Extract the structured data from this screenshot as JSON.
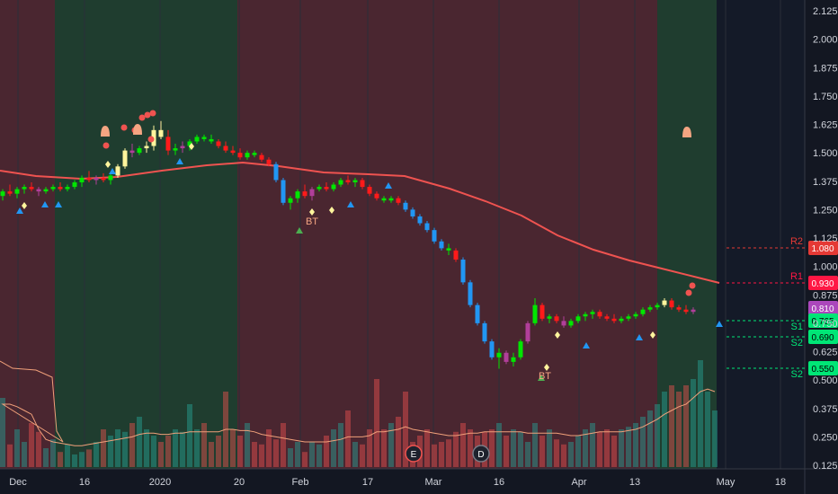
{
  "chart_data": {
    "type": "candlestick",
    "y_axis": {
      "ticks": [
        "2.125",
        "2.000",
        "1.875",
        "1.750",
        "1.625",
        "1.500",
        "1.375",
        "1.250",
        "1.125",
        "1.000",
        "0.875",
        "0.750",
        "0.625",
        "0.500",
        "0.375",
        "0.250",
        "0.125"
      ],
      "range": [
        0.125,
        2.125
      ]
    },
    "x_axis": {
      "ticks": [
        "Dec",
        "16",
        "2020",
        "20",
        "Feb",
        "17",
        "Mar",
        "16",
        "Apr",
        "13",
        "May",
        "18"
      ]
    },
    "regimes": [
      {
        "tone": "bearish",
        "start": "Nov 18",
        "end": "Dec 9"
      },
      {
        "tone": "bullish",
        "start": "Dec 9",
        "end": "Jan 20"
      },
      {
        "tone": "bearish",
        "start": "Jan 20",
        "end": "Apr 20"
      },
      {
        "tone": "bullish",
        "start": "Apr 20",
        "end": "Apr 30"
      }
    ],
    "price_labels": [
      {
        "name": "R2",
        "value": "1.080",
        "color": "#e53935"
      },
      {
        "name": "R1",
        "value": "0.930",
        "color": "#ff1744"
      },
      {
        "name": "",
        "value": "0.810",
        "color": "#ab47bc"
      },
      {
        "name": "S1",
        "value": "0.765",
        "color": "#00e676"
      },
      {
        "name": "S2",
        "value": "0.690",
        "color": "#00e676"
      },
      {
        "name": "S2",
        "value": "0.550",
        "color": "#00e676"
      }
    ],
    "annotations": [
      "BT",
      "BT"
    ],
    "event_markers": [
      "E",
      "D"
    ],
    "moving_average_color": "#ef5350",
    "candles": [
      {
        "o": 1.31,
        "h": 1.34,
        "l": 1.29,
        "c": 1.33,
        "color": "green"
      },
      {
        "o": 1.33,
        "h": 1.36,
        "l": 1.31,
        "c": 1.32,
        "color": "red"
      },
      {
        "o": 1.32,
        "h": 1.35,
        "l": 1.3,
        "c": 1.34,
        "color": "green"
      },
      {
        "o": 1.34,
        "h": 1.36,
        "l": 1.32,
        "c": 1.35,
        "color": "green"
      },
      {
        "o": 1.35,
        "h": 1.37,
        "l": 1.33,
        "c": 1.34,
        "color": "red"
      },
      {
        "o": 1.34,
        "h": 1.35,
        "l": 1.31,
        "c": 1.33,
        "color": "purple"
      },
      {
        "o": 1.33,
        "h": 1.35,
        "l": 1.32,
        "c": 1.34,
        "color": "green"
      },
      {
        "o": 1.34,
        "h": 1.36,
        "l": 1.33,
        "c": 1.35,
        "color": "green"
      },
      {
        "o": 1.35,
        "h": 1.37,
        "l": 1.33,
        "c": 1.34,
        "color": "red"
      },
      {
        "o": 1.34,
        "h": 1.36,
        "l": 1.33,
        "c": 1.35,
        "color": "green"
      },
      {
        "o": 1.35,
        "h": 1.38,
        "l": 1.34,
        "c": 1.37,
        "color": "green"
      },
      {
        "o": 1.37,
        "h": 1.4,
        "l": 1.35,
        "c": 1.39,
        "color": "green"
      },
      {
        "o": 1.39,
        "h": 1.42,
        "l": 1.37,
        "c": 1.38,
        "color": "red"
      },
      {
        "o": 1.38,
        "h": 1.4,
        "l": 1.36,
        "c": 1.39,
        "color": "purple"
      },
      {
        "o": 1.39,
        "h": 1.41,
        "l": 1.37,
        "c": 1.38,
        "color": "red"
      },
      {
        "o": 1.38,
        "h": 1.41,
        "l": 1.36,
        "c": 1.4,
        "color": "green"
      },
      {
        "o": 1.4,
        "h": 1.45,
        "l": 1.39,
        "c": 1.44,
        "color": "yellow"
      },
      {
        "o": 1.44,
        "h": 1.52,
        "l": 1.43,
        "c": 1.51,
        "color": "yellow"
      },
      {
        "o": 1.51,
        "h": 1.54,
        "l": 1.48,
        "c": 1.5,
        "color": "purple"
      },
      {
        "o": 1.5,
        "h": 1.53,
        "l": 1.49,
        "c": 1.52,
        "color": "green"
      },
      {
        "o": 1.52,
        "h": 1.55,
        "l": 1.5,
        "c": 1.53,
        "color": "yellow"
      },
      {
        "o": 1.53,
        "h": 1.62,
        "l": 1.51,
        "c": 1.6,
        "color": "yellow"
      },
      {
        "o": 1.6,
        "h": 1.64,
        "l": 1.56,
        "c": 1.57,
        "color": "yellow"
      },
      {
        "o": 1.57,
        "h": 1.6,
        "l": 1.49,
        "c": 1.51,
        "color": "red"
      },
      {
        "o": 1.51,
        "h": 1.54,
        "l": 1.49,
        "c": 1.52,
        "color": "green"
      },
      {
        "o": 1.52,
        "h": 1.55,
        "l": 1.5,
        "c": 1.53,
        "color": "purple"
      },
      {
        "o": 1.53,
        "h": 1.56,
        "l": 1.51,
        "c": 1.55,
        "color": "green"
      },
      {
        "o": 1.55,
        "h": 1.58,
        "l": 1.54,
        "c": 1.57,
        "color": "green"
      },
      {
        "o": 1.57,
        "h": 1.58,
        "l": 1.55,
        "c": 1.56,
        "color": "green"
      },
      {
        "o": 1.56,
        "h": 1.58,
        "l": 1.54,
        "c": 1.55,
        "color": "green"
      },
      {
        "o": 1.55,
        "h": 1.56,
        "l": 1.52,
        "c": 1.53,
        "color": "red"
      },
      {
        "o": 1.53,
        "h": 1.55,
        "l": 1.5,
        "c": 1.51,
        "color": "red"
      },
      {
        "o": 1.51,
        "h": 1.53,
        "l": 1.49,
        "c": 1.5,
        "color": "red"
      },
      {
        "o": 1.5,
        "h": 1.52,
        "l": 1.47,
        "c": 1.48,
        "color": "red"
      },
      {
        "o": 1.48,
        "h": 1.51,
        "l": 1.47,
        "c": 1.5,
        "color": "green"
      },
      {
        "o": 1.5,
        "h": 1.51,
        "l": 1.48,
        "c": 1.49,
        "color": "green"
      },
      {
        "o": 1.49,
        "h": 1.5,
        "l": 1.46,
        "c": 1.47,
        "color": "red"
      },
      {
        "o": 1.47,
        "h": 1.48,
        "l": 1.44,
        "c": 1.45,
        "color": "red"
      },
      {
        "o": 1.45,
        "h": 1.46,
        "l": 1.37,
        "c": 1.38,
        "color": "blue"
      },
      {
        "o": 1.38,
        "h": 1.39,
        "l": 1.27,
        "c": 1.28,
        "color": "blue"
      },
      {
        "o": 1.28,
        "h": 1.31,
        "l": 1.25,
        "c": 1.3,
        "color": "green"
      },
      {
        "o": 1.3,
        "h": 1.34,
        "l": 1.28,
        "c": 1.33,
        "color": "green"
      },
      {
        "o": 1.33,
        "h": 1.36,
        "l": 1.3,
        "c": 1.31,
        "color": "red"
      },
      {
        "o": 1.31,
        "h": 1.35,
        "l": 1.29,
        "c": 1.34,
        "color": "purple"
      },
      {
        "o": 1.34,
        "h": 1.36,
        "l": 1.33,
        "c": 1.35,
        "color": "green"
      },
      {
        "o": 1.35,
        "h": 1.37,
        "l": 1.33,
        "c": 1.34,
        "color": "red"
      },
      {
        "o": 1.34,
        "h": 1.37,
        "l": 1.33,
        "c": 1.36,
        "color": "green"
      },
      {
        "o": 1.36,
        "h": 1.39,
        "l": 1.35,
        "c": 1.38,
        "color": "green"
      },
      {
        "o": 1.38,
        "h": 1.4,
        "l": 1.36,
        "c": 1.37,
        "color": "red"
      },
      {
        "o": 1.37,
        "h": 1.39,
        "l": 1.35,
        "c": 1.38,
        "color": "green"
      },
      {
        "o": 1.38,
        "h": 1.39,
        "l": 1.34,
        "c": 1.35,
        "color": "red"
      },
      {
        "o": 1.35,
        "h": 1.36,
        "l": 1.31,
        "c": 1.32,
        "color": "red"
      },
      {
        "o": 1.32,
        "h": 1.33,
        "l": 1.29,
        "c": 1.3,
        "color": "red"
      },
      {
        "o": 1.3,
        "h": 1.31,
        "l": 1.28,
        "c": 1.29,
        "color": "green"
      },
      {
        "o": 1.29,
        "h": 1.31,
        "l": 1.28,
        "c": 1.3,
        "color": "green"
      },
      {
        "o": 1.3,
        "h": 1.31,
        "l": 1.27,
        "c": 1.28,
        "color": "red"
      },
      {
        "o": 1.28,
        "h": 1.29,
        "l": 1.24,
        "c": 1.25,
        "color": "blue"
      },
      {
        "o": 1.25,
        "h": 1.26,
        "l": 1.21,
        "c": 1.22,
        "color": "blue"
      },
      {
        "o": 1.22,
        "h": 1.23,
        "l": 1.18,
        "c": 1.19,
        "color": "blue"
      },
      {
        "o": 1.19,
        "h": 1.2,
        "l": 1.15,
        "c": 1.16,
        "color": "blue"
      },
      {
        "o": 1.16,
        "h": 1.17,
        "l": 1.1,
        "c": 1.11,
        "color": "blue"
      },
      {
        "o": 1.11,
        "h": 1.12,
        "l": 1.07,
        "c": 1.08,
        "color": "blue"
      },
      {
        "o": 1.08,
        "h": 1.1,
        "l": 1.05,
        "c": 1.07,
        "color": "green"
      },
      {
        "o": 1.07,
        "h": 1.08,
        "l": 1.02,
        "c": 1.03,
        "color": "red"
      },
      {
        "o": 1.03,
        "h": 1.04,
        "l": 0.92,
        "c": 0.93,
        "color": "blue"
      },
      {
        "o": 0.93,
        "h": 0.94,
        "l": 0.82,
        "c": 0.83,
        "color": "blue"
      },
      {
        "o": 0.83,
        "h": 0.84,
        "l": 0.74,
        "c": 0.75,
        "color": "blue"
      },
      {
        "o": 0.75,
        "h": 0.76,
        "l": 0.66,
        "c": 0.67,
        "color": "blue"
      },
      {
        "o": 0.67,
        "h": 0.68,
        "l": 0.59,
        "c": 0.6,
        "color": "blue"
      },
      {
        "o": 0.6,
        "h": 0.64,
        "l": 0.55,
        "c": 0.62,
        "color": "green"
      },
      {
        "o": 0.62,
        "h": 0.63,
        "l": 0.57,
        "c": 0.58,
        "color": "purple"
      },
      {
        "o": 0.58,
        "h": 0.62,
        "l": 0.56,
        "c": 0.6,
        "color": "green"
      },
      {
        "o": 0.6,
        "h": 0.68,
        "l": 0.59,
        "c": 0.67,
        "color": "green"
      },
      {
        "o": 0.67,
        "h": 0.76,
        "l": 0.66,
        "c": 0.75,
        "color": "purple"
      },
      {
        "o": 0.75,
        "h": 0.86,
        "l": 0.74,
        "c": 0.83,
        "color": "green"
      },
      {
        "o": 0.83,
        "h": 0.84,
        "l": 0.76,
        "c": 0.77,
        "color": "red"
      },
      {
        "o": 0.77,
        "h": 0.79,
        "l": 0.75,
        "c": 0.78,
        "color": "green"
      },
      {
        "o": 0.78,
        "h": 0.79,
        "l": 0.75,
        "c": 0.76,
        "color": "red"
      },
      {
        "o": 0.76,
        "h": 0.78,
        "l": 0.73,
        "c": 0.74,
        "color": "purple"
      },
      {
        "o": 0.74,
        "h": 0.77,
        "l": 0.73,
        "c": 0.76,
        "color": "green"
      },
      {
        "o": 0.76,
        "h": 0.79,
        "l": 0.75,
        "c": 0.78,
        "color": "green"
      },
      {
        "o": 0.78,
        "h": 0.8,
        "l": 0.76,
        "c": 0.79,
        "color": "green"
      },
      {
        "o": 0.79,
        "h": 0.81,
        "l": 0.77,
        "c": 0.8,
        "color": "green"
      },
      {
        "o": 0.8,
        "h": 0.81,
        "l": 0.77,
        "c": 0.78,
        "color": "red"
      },
      {
        "o": 0.78,
        "h": 0.79,
        "l": 0.76,
        "c": 0.77,
        "color": "red"
      },
      {
        "o": 0.77,
        "h": 0.79,
        "l": 0.75,
        "c": 0.76,
        "color": "red"
      },
      {
        "o": 0.76,
        "h": 0.78,
        "l": 0.75,
        "c": 0.77,
        "color": "green"
      },
      {
        "o": 0.77,
        "h": 0.79,
        "l": 0.76,
        "c": 0.78,
        "color": "green"
      },
      {
        "o": 0.78,
        "h": 0.8,
        "l": 0.77,
        "c": 0.79,
        "color": "green"
      },
      {
        "o": 0.79,
        "h": 0.82,
        "l": 0.78,
        "c": 0.81,
        "color": "green"
      },
      {
        "o": 0.81,
        "h": 0.83,
        "l": 0.8,
        "c": 0.82,
        "color": "green"
      },
      {
        "o": 0.82,
        "h": 0.84,
        "l": 0.81,
        "c": 0.83,
        "color": "green"
      },
      {
        "o": 0.83,
        "h": 0.86,
        "l": 0.82,
        "c": 0.85,
        "color": "yellow"
      },
      {
        "o": 0.85,
        "h": 0.86,
        "l": 0.81,
        "c": 0.82,
        "color": "red"
      },
      {
        "o": 0.82,
        "h": 0.83,
        "l": 0.8,
        "c": 0.81,
        "color": "red"
      },
      {
        "o": 0.81,
        "h": 0.83,
        "l": 0.79,
        "c": 0.8,
        "color": "red"
      },
      {
        "o": 0.8,
        "h": 0.82,
        "l": 0.79,
        "c": 0.81,
        "color": "purple"
      }
    ],
    "volume": [
      0.55,
      0.18,
      0.3,
      0.2,
      0.35,
      0.28,
      0.15,
      0.22,
      0.12,
      0.18,
      0.1,
      0.12,
      0.14,
      0.2,
      0.3,
      0.25,
      0.3,
      0.28,
      0.35,
      0.4,
      0.3,
      0.25,
      0.2,
      0.25,
      0.3,
      0.28,
      0.5,
      0.3,
      0.35,
      0.2,
      0.25,
      0.6,
      0.3,
      0.25,
      0.35,
      0.2,
      0.18,
      0.3,
      0.22,
      0.35,
      0.15,
      0.2,
      0.12,
      0.2,
      0.18,
      0.25,
      0.3,
      0.35,
      0.45,
      0.2,
      0.18,
      0.3,
      0.7,
      0.3,
      0.35,
      0.4,
      0.6,
      0.2,
      0.25,
      0.3,
      0.18,
      0.2,
      0.22,
      0.28,
      0.35,
      0.3,
      0.25,
      0.28,
      0.3,
      0.35,
      0.25,
      0.3,
      0.28,
      0.2,
      0.35,
      0.25,
      0.3,
      0.22,
      0.18,
      0.2,
      0.25,
      0.3,
      0.35,
      0.28,
      0.3,
      0.25,
      0.3,
      0.32,
      0.35,
      0.4,
      0.45,
      0.5,
      0.6,
      0.65,
      0.6,
      0.65,
      0.7,
      0.85,
      0.6,
      0.45
    ],
    "volume_ma": [
      0.5,
      0.5,
      0.48,
      0.45,
      0.42,
      0.3,
      0.22,
      0.2,
      0.19,
      0.18,
      0.17,
      0.17,
      0.18,
      0.19,
      0.2,
      0.21,
      0.22,
      0.23,
      0.24,
      0.26,
      0.27,
      0.27,
      0.26,
      0.26,
      0.27,
      0.27,
      0.28,
      0.28,
      0.28,
      0.28,
      0.28,
      0.3,
      0.3,
      0.29,
      0.29,
      0.28,
      0.26,
      0.25,
      0.24,
      0.23,
      0.22,
      0.21,
      0.2,
      0.2,
      0.2,
      0.2,
      0.21,
      0.22,
      0.24,
      0.24,
      0.24,
      0.25,
      0.28,
      0.28,
      0.29,
      0.3,
      0.32,
      0.3,
      0.29,
      0.28,
      0.27,
      0.26,
      0.25,
      0.25,
      0.26,
      0.27,
      0.27,
      0.28,
      0.28,
      0.28,
      0.28,
      0.28,
      0.28,
      0.27,
      0.27,
      0.27,
      0.27,
      0.27,
      0.26,
      0.25,
      0.25,
      0.26,
      0.27,
      0.28,
      0.28,
      0.28,
      0.28,
      0.29,
      0.3,
      0.32,
      0.35,
      0.38,
      0.42,
      0.45,
      0.48,
      0.5,
      0.55,
      0.6,
      0.62,
      0.6
    ]
  }
}
